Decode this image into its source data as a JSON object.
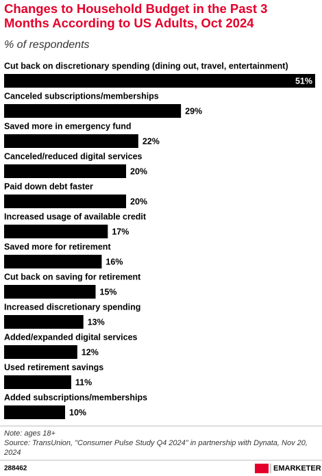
{
  "chart_data": {
    "type": "bar",
    "orientation": "horizontal",
    "title": "Changes to Household Budget in the Past 3 Months According to US Adults, Oct 2024",
    "subtitle": "% of respondents",
    "categories": [
      "Cut back on discretionary spending (dining out, travel, entertainment)",
      "Canceled subscriptions/memberships",
      "Saved more in emergency fund",
      "Canceled/reduced digital services",
      "Paid down debt faster",
      "Increased usage of available credit",
      "Saved more for retirement",
      "Cut back on saving for retirement",
      "Increased discretionary spending",
      "Added/expanded digital services",
      "Used retirement savings",
      "Added subscriptions/memberships"
    ],
    "values": [
      51,
      29,
      22,
      20,
      20,
      17,
      16,
      15,
      13,
      12,
      11,
      10
    ],
    "value_labels": [
      "51%",
      "29%",
      "22%",
      "20%",
      "20%",
      "17%",
      "16%",
      "15%",
      "13%",
      "12%",
      "11%",
      "10%"
    ],
    "color": "#000000",
    "xlim": [
      0,
      51
    ],
    "note": "Note: ages 18+",
    "source": "Source: TransUnion, \"Consumer Pulse Study Q4 2024\" in partnership with Dynata, Nov 20, 2024",
    "chart_id": "288462",
    "brand": "EMARKETER"
  }
}
